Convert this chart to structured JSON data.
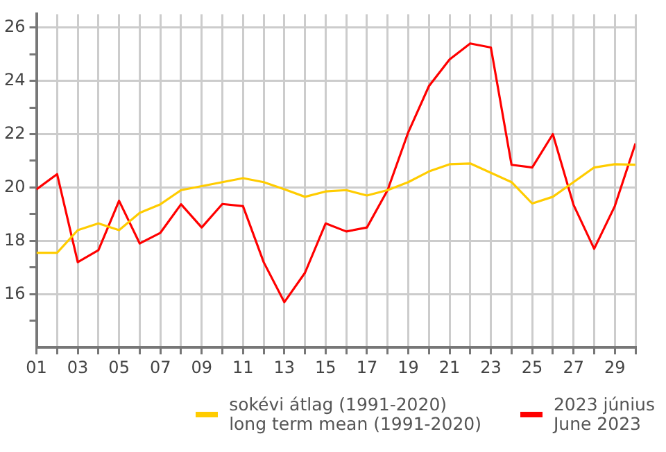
{
  "chart_data": {
    "type": "line",
    "x": [
      1,
      2,
      3,
      4,
      5,
      6,
      7,
      8,
      9,
      10,
      11,
      12,
      13,
      14,
      15,
      16,
      17,
      18,
      19,
      20,
      21,
      22,
      23,
      24,
      25,
      26,
      27,
      28,
      29,
      30
    ],
    "series": [
      {
        "name": "sokévi átlag (1991-2020)\nlong term mean (1991-2020)",
        "color": "#ffcc00",
        "values": [
          17.55,
          17.55,
          18.4,
          18.65,
          18.4,
          19.05,
          19.37,
          19.9,
          20.05,
          20.2,
          20.35,
          20.2,
          19.93,
          19.65,
          19.85,
          19.9,
          19.7,
          19.9,
          20.2,
          20.6,
          20.87,
          20.9,
          20.55,
          20.2,
          19.4,
          19.65,
          20.2,
          20.75,
          20.87,
          20.85
        ]
      },
      {
        "name": "2023 június\nJune 2023",
        "color": "#ff0000",
        "values": [
          19.93,
          20.5,
          17.2,
          17.65,
          19.5,
          17.9,
          18.3,
          19.37,
          18.5,
          19.38,
          19.3,
          17.2,
          15.7,
          16.8,
          18.65,
          18.35,
          18.5,
          19.9,
          22.07,
          23.8,
          24.8,
          25.4,
          25.25,
          20.85,
          20.75,
          22.0,
          19.35,
          17.7,
          19.3,
          21.65
        ]
      }
    ],
    "xlim": [
      1,
      30
    ],
    "xticks": [
      {
        "value": 1,
        "label": "01"
      },
      {
        "value": 2,
        "label": null
      },
      {
        "value": 3,
        "label": "03"
      },
      {
        "value": 4,
        "label": null
      },
      {
        "value": 5,
        "label": "05"
      },
      {
        "value": 6,
        "label": null
      },
      {
        "value": 7,
        "label": "07"
      },
      {
        "value": 8,
        "label": null
      },
      {
        "value": 9,
        "label": "09"
      },
      {
        "value": 10,
        "label": null
      },
      {
        "value": 11,
        "label": "11"
      },
      {
        "value": 12,
        "label": null
      },
      {
        "value": 13,
        "label": "13"
      },
      {
        "value": 14,
        "label": null
      },
      {
        "value": 15,
        "label": "15"
      },
      {
        "value": 16,
        "label": null
      },
      {
        "value": 17,
        "label": "17"
      },
      {
        "value": 18,
        "label": null
      },
      {
        "value": 19,
        "label": "19"
      },
      {
        "value": 20,
        "label": null
      },
      {
        "value": 21,
        "label": "21"
      },
      {
        "value": 22,
        "label": null
      },
      {
        "value": 23,
        "label": "23"
      },
      {
        "value": 24,
        "label": null
      },
      {
        "value": 25,
        "label": "25"
      },
      {
        "value": 26,
        "label": null
      },
      {
        "value": 27,
        "label": "27"
      },
      {
        "value": 28,
        "label": null
      },
      {
        "value": 29,
        "label": "29"
      },
      {
        "value": 30,
        "label": null
      }
    ],
    "ylim": [
      14,
      26.5
    ],
    "yticks": [
      {
        "value": 15,
        "label": null
      },
      16,
      {
        "value": 17,
        "label": null
      },
      18,
      {
        "value": 19,
        "label": null
      },
      20,
      {
        "value": 21,
        "label": null
      },
      22,
      {
        "value": 23,
        "label": null
      },
      24,
      {
        "value": 25,
        "label": null
      },
      26
    ],
    "grid": true,
    "legend": "bottom right",
    "marker": "none",
    "line_style": "solid"
  }
}
